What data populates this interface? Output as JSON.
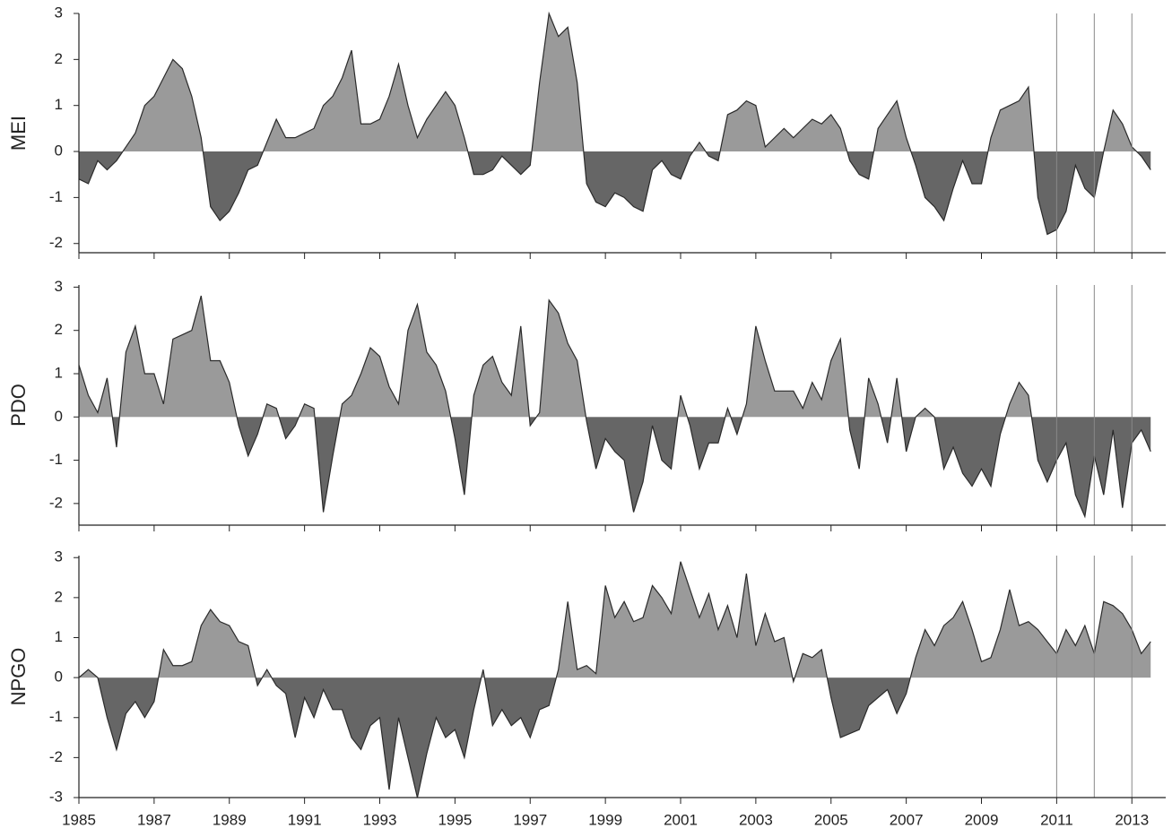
{
  "chart_data": [
    {
      "type": "area",
      "ylabel": "MEI",
      "x": [
        1985,
        1985.25,
        1985.5,
        1985.75,
        1986,
        1986.25,
        1986.5,
        1986.75,
        1987,
        1987.25,
        1987.5,
        1987.75,
        1988,
        1988.25,
        1988.5,
        1988.75,
        1989,
        1989.25,
        1989.5,
        1989.75,
        1990,
        1990.25,
        1990.5,
        1990.75,
        1991,
        1991.25,
        1991.5,
        1991.75,
        1992,
        1992.25,
        1992.5,
        1992.75,
        1993,
        1993.25,
        1993.5,
        1993.75,
        1994,
        1994.25,
        1994.5,
        1994.75,
        1995,
        1995.25,
        1995.5,
        1995.75,
        1996,
        1996.25,
        1996.5,
        1996.75,
        1997,
        1997.25,
        1997.5,
        1997.75,
        1998,
        1998.25,
        1998.5,
        1998.75,
        1999,
        1999.25,
        1999.5,
        1999.75,
        2000,
        2000.25,
        2000.5,
        2000.75,
        2001,
        2001.25,
        2001.5,
        2001.75,
        2002,
        2002.25,
        2002.5,
        2002.75,
        2003,
        2003.25,
        2003.5,
        2003.75,
        2004,
        2004.25,
        2004.5,
        2004.75,
        2005,
        2005.25,
        2005.5,
        2005.75,
        2006,
        2006.25,
        2006.5,
        2006.75,
        2007,
        2007.25,
        2007.5,
        2007.75,
        2008,
        2008.25,
        2008.5,
        2008.75,
        2009,
        2009.25,
        2009.5,
        2009.75,
        2010,
        2010.25,
        2010.5,
        2010.75,
        2011,
        2011.25,
        2011.5,
        2011.75,
        2012,
        2012.25,
        2012.5,
        2012.75,
        2013,
        2013.25,
        2013.5
      ],
      "values": [
        -0.6,
        -0.7,
        -0.2,
        -0.4,
        -0.2,
        0.1,
        0.4,
        1.0,
        1.2,
        1.6,
        2.0,
        1.8,
        1.2,
        0.3,
        -1.2,
        -1.5,
        -1.3,
        -0.9,
        -0.4,
        -0.3,
        0.2,
        0.7,
        0.3,
        0.3,
        0.4,
        0.5,
        1.0,
        1.2,
        1.6,
        2.2,
        0.6,
        0.6,
        0.7,
        1.2,
        1.9,
        1.0,
        0.3,
        0.7,
        1.0,
        1.3,
        1.0,
        0.3,
        -0.5,
        -0.5,
        -0.4,
        -0.1,
        -0.3,
        -0.5,
        -0.3,
        1.5,
        3.0,
        2.5,
        2.7,
        1.5,
        -0.7,
        -1.1,
        -1.2,
        -0.9,
        -1.0,
        -1.2,
        -1.3,
        -0.4,
        -0.2,
        -0.5,
        -0.6,
        -0.1,
        0.2,
        -0.1,
        -0.2,
        0.8,
        0.9,
        1.1,
        1.0,
        0.1,
        0.3,
        0.5,
        0.3,
        0.5,
        0.7,
        0.6,
        0.8,
        0.5,
        -0.2,
        -0.5,
        -0.6,
        0.5,
        0.8,
        1.1,
        0.3,
        -0.3,
        -1.0,
        -1.2,
        -1.5,
        -0.8,
        -0.2,
        -0.7,
        -0.7,
        0.3,
        0.9,
        1.0,
        1.1,
        1.4,
        -1.0,
        -1.8,
        -1.7,
        -1.3,
        -0.3,
        -0.8,
        -1.0,
        0.0,
        0.9,
        0.6,
        0.1,
        -0.1,
        -0.4
      ],
      "xlim": [
        1985,
        2013.9
      ],
      "ylim": [
        -2.2,
        3
      ],
      "xticks": [
        1985,
        1987,
        1989,
        1991,
        1993,
        1995,
        1997,
        1999,
        2001,
        2003,
        2005,
        2007,
        2009,
        2011,
        2013
      ],
      "yticks": [
        -2,
        -1,
        0,
        1,
        2,
        3
      ],
      "xtick_labels": false,
      "vlines": [
        2011,
        2012,
        2013
      ],
      "pos_color": "#9a9a9a",
      "neg_color": "#666666",
      "line_color": "#2a2a2a"
    },
    {
      "type": "area",
      "ylabel": "PDO",
      "x": [
        1985,
        1985.25,
        1985.5,
        1985.75,
        1986,
        1986.25,
        1986.5,
        1986.75,
        1987,
        1987.25,
        1987.5,
        1987.75,
        1988,
        1988.25,
        1988.5,
        1988.75,
        1989,
        1989.25,
        1989.5,
        1989.75,
        1990,
        1990.25,
        1990.5,
        1990.75,
        1991,
        1991.25,
        1991.5,
        1991.75,
        1992,
        1992.25,
        1992.5,
        1992.75,
        1993,
        1993.25,
        1993.5,
        1993.75,
        1994,
        1994.25,
        1994.5,
        1994.75,
        1995,
        1995.25,
        1995.5,
        1995.75,
        1996,
        1996.25,
        1996.5,
        1996.75,
        1997,
        1997.25,
        1997.5,
        1997.75,
        1998,
        1998.25,
        1998.5,
        1998.75,
        1999,
        1999.25,
        1999.5,
        1999.75,
        2000,
        2000.25,
        2000.5,
        2000.75,
        2001,
        2001.25,
        2001.5,
        2001.75,
        2002,
        2002.25,
        2002.5,
        2002.75,
        2003,
        2003.25,
        2003.5,
        2003.75,
        2004,
        2004.25,
        2004.5,
        2004.75,
        2005,
        2005.25,
        2005.5,
        2005.75,
        2006,
        2006.25,
        2006.5,
        2006.75,
        2007,
        2007.25,
        2007.5,
        2007.75,
        2008,
        2008.25,
        2008.5,
        2008.75,
        2009,
        2009.25,
        2009.5,
        2009.75,
        2010,
        2010.25,
        2010.5,
        2010.75,
        2011,
        2011.25,
        2011.5,
        2011.75,
        2012,
        2012.25,
        2012.5,
        2012.75,
        2013,
        2013.25,
        2013.5
      ],
      "values": [
        1.2,
        0.5,
        0.1,
        0.9,
        -0.7,
        1.5,
        2.1,
        1.0,
        1.0,
        0.3,
        1.8,
        1.9,
        2.0,
        2.8,
        1.3,
        1.3,
        0.8,
        -0.2,
        -0.9,
        -0.4,
        0.3,
        0.2,
        -0.5,
        -0.2,
        0.3,
        0.2,
        -2.2,
        -0.9,
        0.3,
        0.5,
        1.0,
        1.6,
        1.4,
        0.7,
        0.3,
        2.0,
        2.6,
        1.5,
        1.2,
        0.6,
        -0.5,
        -1.8,
        0.5,
        1.2,
        1.4,
        0.8,
        0.5,
        2.1,
        -0.2,
        0.1,
        2.7,
        2.4,
        1.7,
        1.3,
        -0.1,
        -1.2,
        -0.5,
        -0.8,
        -1.0,
        -2.2,
        -1.5,
        -0.2,
        -1.0,
        -1.2,
        0.5,
        -0.2,
        -1.2,
        -0.6,
        -0.6,
        0.2,
        -0.4,
        0.3,
        2.1,
        1.3,
        0.6,
        0.6,
        0.6,
        0.2,
        0.8,
        0.4,
        1.3,
        1.8,
        -0.3,
        -1.2,
        0.9,
        0.3,
        -0.6,
        0.9,
        -0.8,
        0.0,
        0.2,
        0.0,
        -1.2,
        -0.7,
        -1.3,
        -1.6,
        -1.2,
        -1.6,
        -0.4,
        0.3,
        0.8,
        0.5,
        -1.0,
        -1.5,
        -1.0,
        -0.6,
        -1.8,
        -2.3,
        -0.9,
        -1.8,
        -0.3,
        -2.1,
        -0.6,
        -0.3,
        -0.8
      ],
      "xlim": [
        1985,
        2013.9
      ],
      "ylim": [
        -2.5,
        3.05
      ],
      "xticks": [
        1985,
        1987,
        1989,
        1991,
        1993,
        1995,
        1997,
        1999,
        2001,
        2003,
        2005,
        2007,
        2009,
        2011,
        2013
      ],
      "yticks": [
        -2,
        -1,
        0,
        1,
        2,
        3
      ],
      "xtick_labels": false,
      "vlines": [
        2011,
        2012,
        2013
      ],
      "pos_color": "#9a9a9a",
      "neg_color": "#666666",
      "line_color": "#2a2a2a"
    },
    {
      "type": "area",
      "ylabel": "NPGO",
      "x": [
        1985,
        1985.25,
        1985.5,
        1985.75,
        1986,
        1986.25,
        1986.5,
        1986.75,
        1987,
        1987.25,
        1987.5,
        1987.75,
        1988,
        1988.25,
        1988.5,
        1988.75,
        1989,
        1989.25,
        1989.5,
        1989.75,
        1990,
        1990.25,
        1990.5,
        1990.75,
        1991,
        1991.25,
        1991.5,
        1991.75,
        1992,
        1992.25,
        1992.5,
        1992.75,
        1993,
        1993.25,
        1993.5,
        1993.75,
        1994,
        1994.25,
        1994.5,
        1994.75,
        1995,
        1995.25,
        1995.5,
        1995.75,
        1996,
        1996.25,
        1996.5,
        1996.75,
        1997,
        1997.25,
        1997.5,
        1997.75,
        1998,
        1998.25,
        1998.5,
        1998.75,
        1999,
        1999.25,
        1999.5,
        1999.75,
        2000,
        2000.25,
        2000.5,
        2000.75,
        2001,
        2001.25,
        2001.5,
        2001.75,
        2002,
        2002.25,
        2002.5,
        2002.75,
        2003,
        2003.25,
        2003.5,
        2003.75,
        2004,
        2004.25,
        2004.5,
        2004.75,
        2005,
        2005.25,
        2005.5,
        2005.75,
        2006,
        2006.25,
        2006.5,
        2006.75,
        2007,
        2007.25,
        2007.5,
        2007.75,
        2008,
        2008.25,
        2008.5,
        2008.75,
        2009,
        2009.25,
        2009.5,
        2009.75,
        2010,
        2010.25,
        2010.5,
        2010.75,
        2011,
        2011.25,
        2011.5,
        2011.75,
        2012,
        2012.25,
        2012.5,
        2012.75,
        2013,
        2013.25,
        2013.5
      ],
      "values": [
        0.0,
        0.2,
        0.0,
        -1.0,
        -1.8,
        -0.9,
        -0.6,
        -1.0,
        -0.6,
        0.7,
        0.3,
        0.3,
        0.4,
        1.3,
        1.7,
        1.4,
        1.3,
        0.9,
        0.8,
        -0.2,
        0.2,
        -0.2,
        -0.4,
        -1.5,
        -0.5,
        -1.0,
        -0.3,
        -0.8,
        -0.8,
        -1.5,
        -1.8,
        -1.2,
        -1.0,
        -2.8,
        -1.0,
        -2.0,
        -3.0,
        -1.9,
        -1.0,
        -1.5,
        -1.3,
        -2.0,
        -0.8,
        0.2,
        -1.2,
        -0.8,
        -1.2,
        -1.0,
        -1.5,
        -0.8,
        -0.7,
        0.2,
        1.9,
        0.2,
        0.3,
        0.1,
        2.3,
        1.5,
        1.9,
        1.4,
        1.5,
        2.3,
        2.0,
        1.6,
        2.9,
        2.2,
        1.5,
        2.1,
        1.2,
        1.8,
        1.0,
        2.6,
        0.8,
        1.6,
        0.9,
        1.0,
        -0.1,
        0.6,
        0.5,
        0.7,
        -0.5,
        -1.5,
        -1.4,
        -1.3,
        -0.7,
        -0.5,
        -0.3,
        -0.9,
        -0.4,
        0.5,
        1.2,
        0.8,
        1.3,
        1.5,
        1.9,
        1.2,
        0.4,
        0.5,
        1.2,
        2.2,
        1.3,
        1.4,
        1.2,
        0.9,
        0.6,
        1.2,
        0.8,
        1.3,
        0.6,
        1.9,
        1.8,
        1.6,
        1.2,
        0.6,
        0.9
      ],
      "xlim": [
        1985,
        2013.9
      ],
      "ylim": [
        -3,
        3.05
      ],
      "xticks": [
        1985,
        1987,
        1989,
        1991,
        1993,
        1995,
        1997,
        1999,
        2001,
        2003,
        2005,
        2007,
        2009,
        2011,
        2013
      ],
      "yticks": [
        -3,
        -2,
        -1,
        0,
        1,
        2,
        3
      ],
      "xtick_labels": true,
      "vlines": [
        2011,
        2012,
        2013
      ],
      "pos_color": "#9a9a9a",
      "neg_color": "#666666",
      "line_color": "#2a2a2a"
    }
  ]
}
